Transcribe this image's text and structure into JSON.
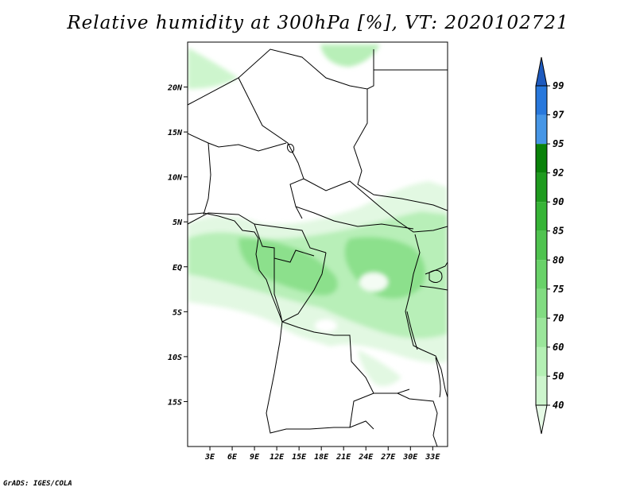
{
  "title": "Relative humidity at 300hPa [%], VT: 2020102721",
  "credit": "GrADS: IGES/COLA",
  "map": {
    "lon_range": [
      0,
      35
    ],
    "lat_range": [
      -20,
      25
    ],
    "lat_ticks": [
      {
        "value": 20,
        "label": "20N"
      },
      {
        "value": 15,
        "label": "15N"
      },
      {
        "value": 10,
        "label": "10N"
      },
      {
        "value": 5,
        "label": "5N"
      },
      {
        "value": 0,
        "label": "EQ"
      },
      {
        "value": -5,
        "label": "5S"
      },
      {
        "value": -10,
        "label": "10S"
      },
      {
        "value": -15,
        "label": "15S"
      }
    ],
    "lon_ticks": [
      {
        "value": 3,
        "label": "3E"
      },
      {
        "value": 6,
        "label": "6E"
      },
      {
        "value": 9,
        "label": "9E"
      },
      {
        "value": 12,
        "label": "12E"
      },
      {
        "value": 15,
        "label": "15E"
      },
      {
        "value": 18,
        "label": "18E"
      },
      {
        "value": 21,
        "label": "21E"
      },
      {
        "value": 24,
        "label": "24E"
      },
      {
        "value": 27,
        "label": "27E"
      },
      {
        "value": 30,
        "label": "30E"
      },
      {
        "value": 33,
        "label": "33E"
      }
    ]
  },
  "colorbar": {
    "levels": [
      "40",
      "50",
      "60",
      "70",
      "75",
      "80",
      "85",
      "90",
      "92",
      "95",
      "97",
      "99"
    ],
    "colors": [
      "#e6fae6",
      "#cdf5cd",
      "#b4f0b4",
      "#9be69b",
      "#82dc82",
      "#69d269",
      "#4fc34f",
      "#36b436",
      "#1e9b1e",
      "#0a820a",
      "#4696e6",
      "#2878dc",
      "#1e5abe"
    ]
  }
}
